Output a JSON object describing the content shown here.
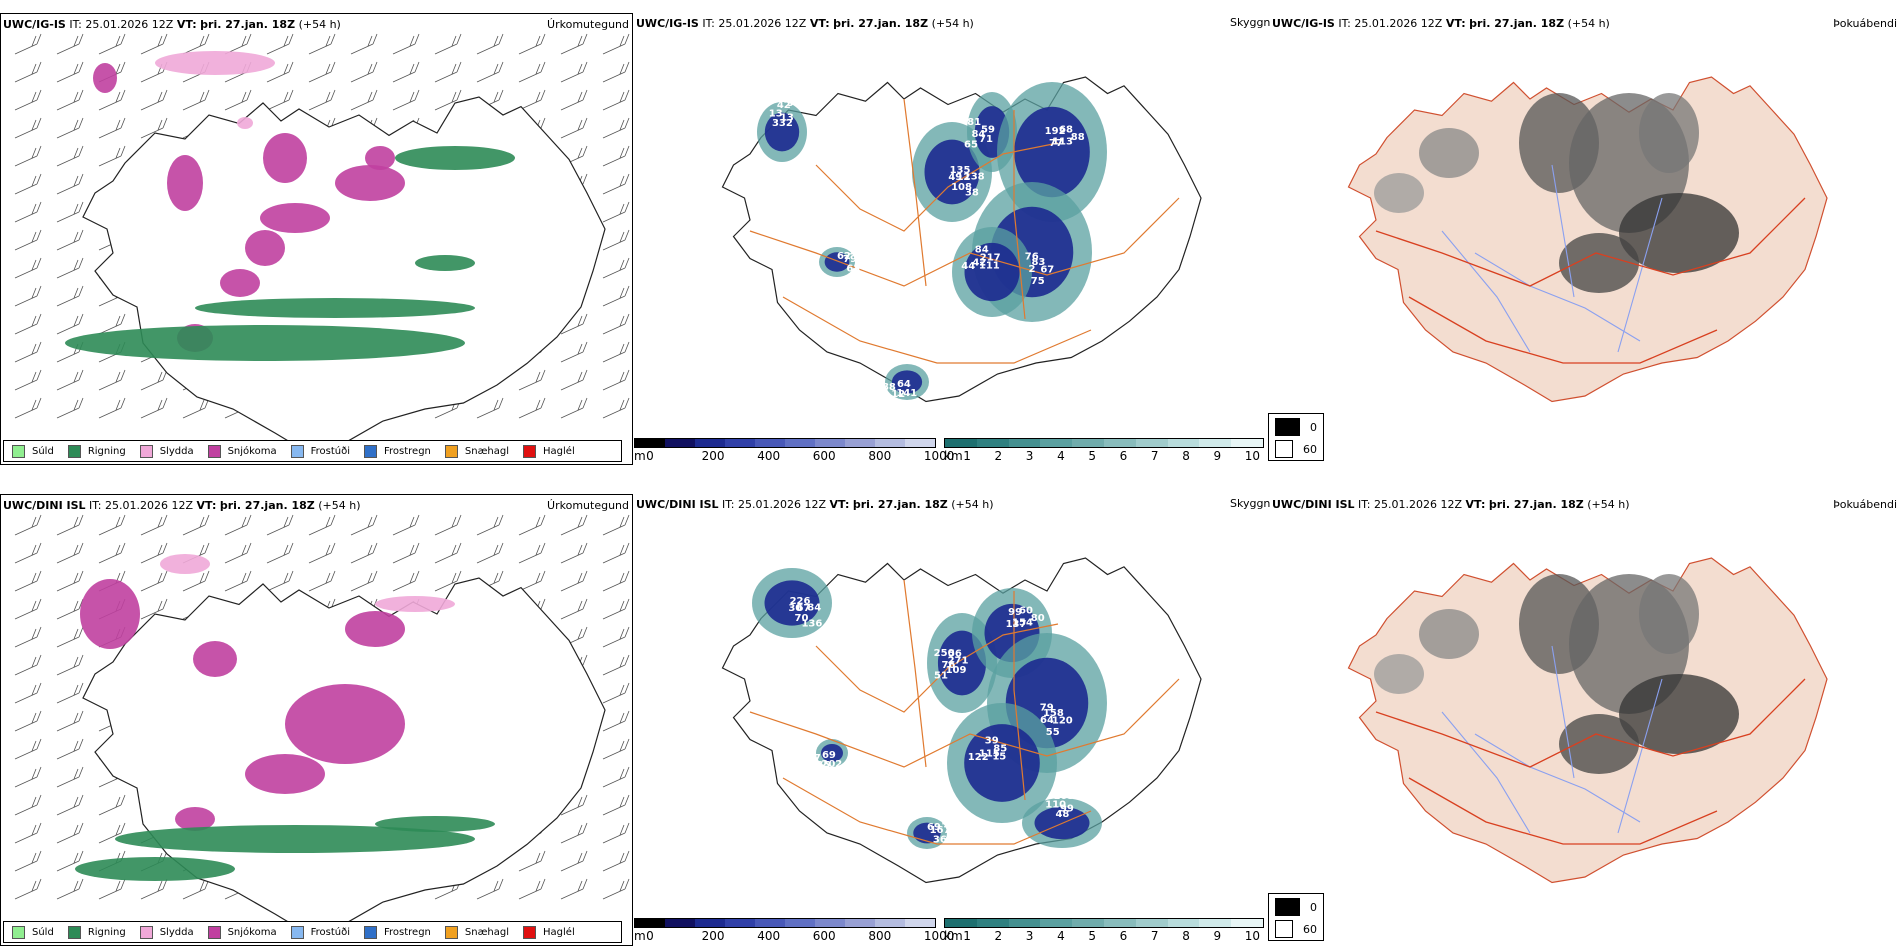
{
  "rows": [
    {
      "model": "UWC/IG-IS",
      "it_label": "IT:",
      "it_value": "25.01.2026 12Z",
      "vt_label": "VT:",
      "vt_value": "þri. 27.jan. 18Z",
      "lead": "(+54 h)",
      "vis_values": [
        "135",
        "71",
        "192",
        "67",
        "44",
        "62",
        "141",
        "13",
        "138",
        "65",
        "77",
        "83",
        "42",
        "170",
        "169",
        "332",
        "12",
        "84",
        "68",
        "75",
        "111",
        "79",
        "12",
        "42",
        "38",
        "59",
        "113",
        "2",
        "84",
        "334",
        "64",
        "13",
        "108",
        "81",
        "88",
        "76",
        "217",
        "63",
        "88",
        "560",
        "49"
      ]
    },
    {
      "model": "UWC/DINI ISL",
      "it_label": "IT:",
      "it_value": "25.01.2026 12Z",
      "vt_label": "VT:",
      "vt_value": "þri. 27.jan. 18Z",
      "lead": "(+54 h)",
      "vis_values": [
        "226",
        "109",
        "99",
        "120",
        "122",
        "69",
        "202",
        "110",
        "84",
        "51",
        "137",
        "158",
        "115",
        "46",
        "56",
        "48",
        "67",
        "76",
        "60",
        "55",
        "15",
        "167",
        "85",
        "105",
        "136",
        "271",
        "154",
        "64",
        "39",
        "55",
        "69",
        "99",
        "70",
        "250",
        "80",
        "79",
        "85",
        "369",
        "47",
        "88",
        "30",
        "56"
      ]
    }
  ],
  "panel_names": {
    "precip": "Úrkomutegund",
    "vis": "Skyggni",
    "fog": "Þokuábendi"
  },
  "precip_legend": [
    {
      "label": "Súld",
      "color": "#90ee90"
    },
    {
      "label": "Rigning",
      "color": "#2e8b57"
    },
    {
      "label": "Slydda",
      "color": "#f0a8d8"
    },
    {
      "label": "Snjókoma",
      "color": "#c040a0"
    },
    {
      "label": "Frostúði",
      "color": "#87b8f0"
    },
    {
      "label": "Frostregn",
      "color": "#3070c8"
    },
    {
      "label": "Snæhagl",
      "color": "#f0a020"
    },
    {
      "label": "Haglél",
      "color": "#e01010"
    }
  ],
  "scale_m": {
    "unit": "m",
    "ticks": [
      "0",
      "200",
      "400",
      "600",
      "800",
      "1000"
    ],
    "colors": [
      "#000000",
      "#101060",
      "#1c2a90",
      "#3040a8",
      "#4858b8",
      "#6070c4",
      "#7c88cc",
      "#98a0d4",
      "#b4bce0",
      "#d0d6ec"
    ]
  },
  "scale_km": {
    "unit": "km",
    "ticks": [
      "1",
      "2",
      "3",
      "4",
      "5",
      "6",
      "7",
      "8",
      "9",
      "10"
    ],
    "colors": [
      "#1e7070",
      "#2f8080",
      "#449090",
      "#5aa0a0",
      "#70acac",
      "#88bcbc",
      "#a0cccc",
      "#b8dcdc",
      "#d0eaea",
      "#e8f6f6"
    ]
  },
  "fog_legend": [
    {
      "label": "0",
      "color": "#000000"
    },
    {
      "label": "60",
      "color": "#ffffff"
    }
  ],
  "colors": {
    "land_fog": "#f3ddd0",
    "roads": "#e07a30",
    "rivers": "#8aa0f0",
    "rain": "#2e8b57",
    "snow": "#c040a0",
    "sleet": "#f0a8d8",
    "vis_dark": "#1c2a90",
    "vis_teal": "#5aa0a0"
  }
}
